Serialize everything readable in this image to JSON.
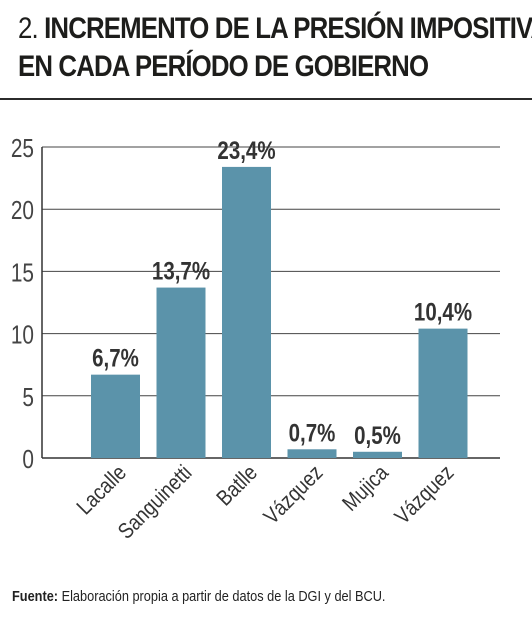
{
  "header": {
    "number": "2.",
    "title_line1": "INCREMENTO DE LA PRESIÓN IMPOSITIVA",
    "title_line2": "EN CADA PERÍODO DE GOBIERNO"
  },
  "footer": {
    "label": "Fuente:",
    "text": "Elaboración propia a partir de datos de la DGI y del BCU."
  },
  "chart_data": {
    "type": "bar",
    "categories": [
      "Lacalle",
      "Sanguinetti",
      "Batlle",
      "Vázquez",
      "Mujica",
      "Vázquez"
    ],
    "values": [
      6.7,
      13.7,
      23.4,
      0.7,
      0.5,
      10.4
    ],
    "data_labels": [
      "6,7%",
      "13,7%",
      "23,4%",
      "0,7%",
      "0,5%",
      "10,4%"
    ],
    "ylim": [
      0,
      25
    ],
    "yticks": [
      0,
      5,
      10,
      15,
      20,
      25
    ],
    "grid": true,
    "bar_color": "#5b93aa"
  }
}
